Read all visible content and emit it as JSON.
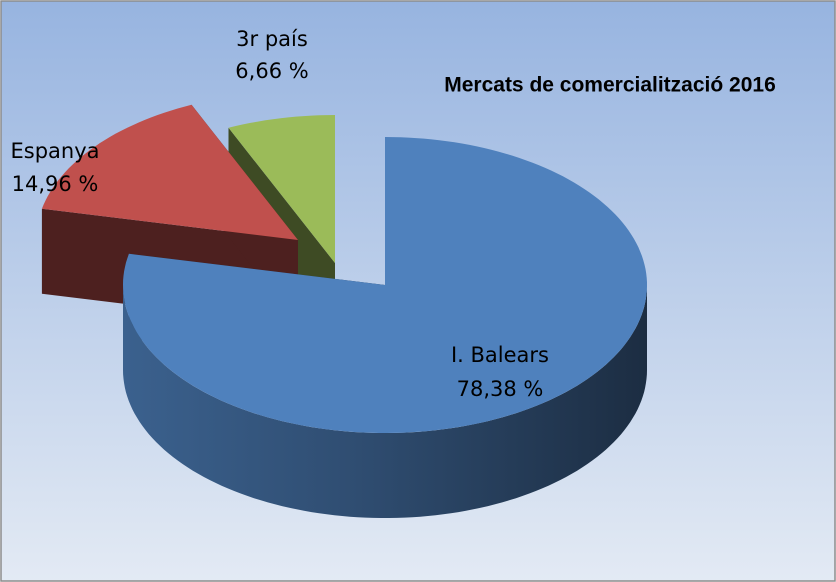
{
  "chart_data": {
    "type": "pie3d",
    "title": "Mercats de comercialització 2016",
    "categories": [
      "I. Balears",
      "Espanya",
      "3r país"
    ],
    "values": [
      78.38,
      14.96,
      6.66
    ],
    "value_labels": [
      "78,38 %",
      "14,96 %",
      "6,66 %"
    ],
    "colors": [
      "#4f81bd",
      "#c0504d",
      "#9bbb59"
    ]
  }
}
